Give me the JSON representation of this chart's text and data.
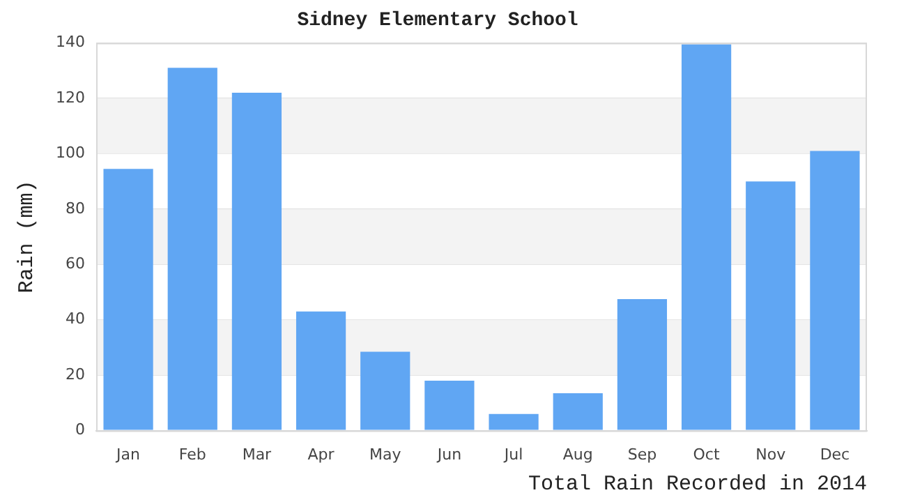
{
  "chart_data": {
    "type": "bar",
    "title": "Sidney Elementary School",
    "xlabel": "Total Rain Recorded in 2014",
    "ylabel": "Rain (mm)",
    "categories": [
      "Jan",
      "Feb",
      "Mar",
      "Apr",
      "May",
      "Jun",
      "Jul",
      "Aug",
      "Sep",
      "Oct",
      "Nov",
      "Dec"
    ],
    "values": [
      94.5,
      131,
      122,
      43,
      28.5,
      18,
      6,
      13.5,
      47.5,
      139.5,
      90,
      101
    ],
    "color": "#60a6f3",
    "ylim": [
      0,
      140
    ],
    "yticks": [
      0,
      20,
      40,
      60,
      80,
      100,
      120,
      140
    ],
    "grid": "y",
    "legend": false,
    "bands": [
      {
        "axis": "y",
        "from": 20,
        "to": 40,
        "color": "#f3f3f3"
      },
      {
        "axis": "y",
        "from": 60,
        "to": 80,
        "color": "#f3f3f3"
      },
      {
        "axis": "y",
        "from": 100,
        "to": 120,
        "color": "#f3f3f3"
      }
    ]
  }
}
